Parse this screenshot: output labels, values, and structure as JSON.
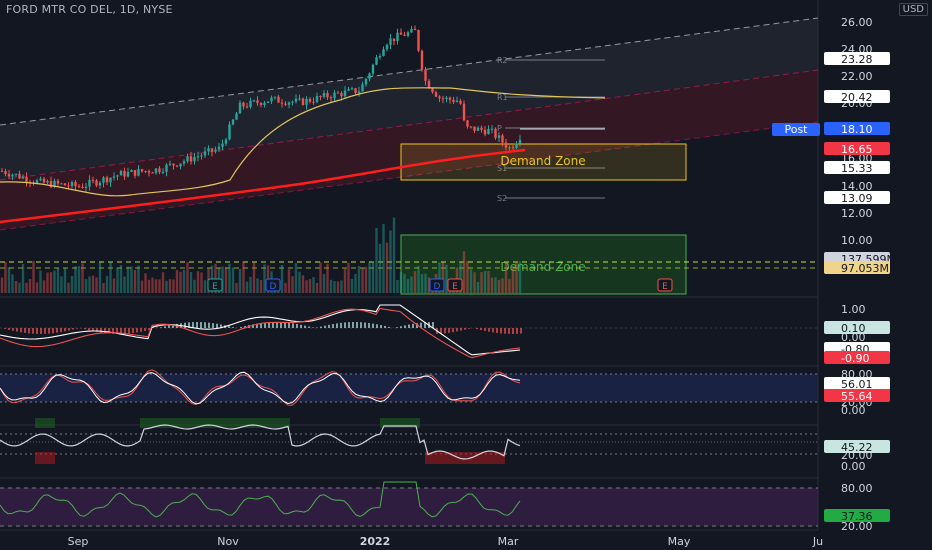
{
  "header": {
    "symbol": "FORD MTR CO DEL, 1D, NYSE",
    "currency": "USD"
  },
  "price_axis": {
    "ticks": [
      "26.00",
      "24.00",
      "22.00",
      "20.00",
      "18.00",
      "16.00",
      "14.00",
      "12.00",
      "10.00"
    ]
  },
  "price_tags": [
    {
      "text": "23.28",
      "bg": "#ffffff",
      "fg": "#131722"
    },
    {
      "text": "20.42",
      "bg": "#ffffff",
      "fg": "#131722"
    },
    {
      "text": "18.10",
      "bg": "#2962ff",
      "fg": "#ffffff"
    },
    {
      "text": "16.65",
      "bg": "#f23645",
      "fg": "#ffffff"
    },
    {
      "text": "15.33",
      "bg": "#ffffff",
      "fg": "#131722"
    },
    {
      "text": "13.09",
      "bg": "#ffffff",
      "fg": "#131722"
    }
  ],
  "post_label": "Post",
  "pivots": [
    "R2",
    "R1",
    "P",
    "S1",
    "S2"
  ],
  "zones": [
    {
      "label": "Demand Zone"
    },
    {
      "label": "Demand Zone"
    }
  ],
  "volume_tags": [
    {
      "text": "137.599M",
      "bg": "#d1d4dc",
      "fg": "#131722"
    },
    {
      "text": "97.053M",
      "bg": "#f0d48a",
      "fg": "#131722"
    }
  ],
  "event_markers": [
    "E",
    "D",
    "D",
    "E",
    "E"
  ],
  "macd": {
    "ticks": [
      "1.00",
      "0.00"
    ],
    "tags": [
      {
        "text": "0.10",
        "bg": "#c9e5e2",
        "fg": "#131722"
      },
      {
        "text": "-0.80",
        "bg": "#ffffff",
        "fg": "#131722"
      },
      {
        "text": "-0.90",
        "bg": "#f23645",
        "fg": "#ffffff"
      }
    ]
  },
  "stoch": {
    "ticks": [
      "80.00",
      "20.00",
      "0.00"
    ],
    "tags": [
      {
        "text": "56.01",
        "bg": "#ffffff",
        "fg": "#131722"
      },
      {
        "text": "55.64",
        "bg": "#f23645",
        "fg": "#ffffff"
      }
    ]
  },
  "rsi": {
    "ticks": [
      "20.00",
      "0.00"
    ],
    "tags": [
      {
        "text": "45.22",
        "bg": "#c9e5e2",
        "fg": "#131722"
      }
    ]
  },
  "osc": {
    "ticks": [
      "80.00",
      "20.00"
    ],
    "tags": [
      {
        "text": "37.36",
        "bg": "#22ab45",
        "fg": "#131722"
      }
    ]
  },
  "time_axis": [
    "Sep",
    "Nov",
    "2022",
    "Mar",
    "May",
    "Ju"
  ]
}
